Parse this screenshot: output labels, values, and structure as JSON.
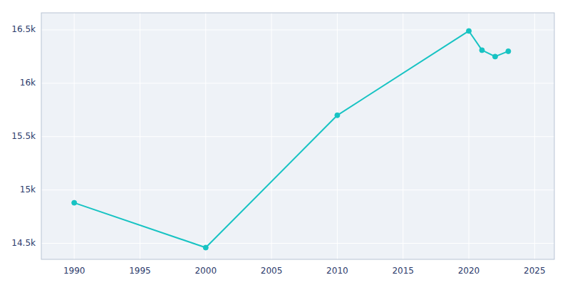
{
  "chart_data": {
    "type": "line",
    "x": [
      1990,
      2000,
      2010,
      2020,
      2021,
      2022,
      2023
    ],
    "values": [
      14880,
      14460,
      15700,
      16490,
      16310,
      16250,
      16300
    ],
    "color": "#17C3C3",
    "marker": "circle",
    "xlim": [
      1987.5,
      2026.5
    ],
    "ylim": [
      14350,
      16660
    ],
    "xticks": [
      1990,
      1995,
      2000,
      2005,
      2010,
      2015,
      2020,
      2025
    ],
    "yticks": [
      {
        "value": 14500,
        "label": "14.5k"
      },
      {
        "value": 15000,
        "label": "15k"
      },
      {
        "value": 15500,
        "label": "15.5k"
      },
      {
        "value": 16000,
        "label": "16k"
      },
      {
        "value": 16500,
        "label": "16.5k"
      }
    ],
    "grid": true
  }
}
